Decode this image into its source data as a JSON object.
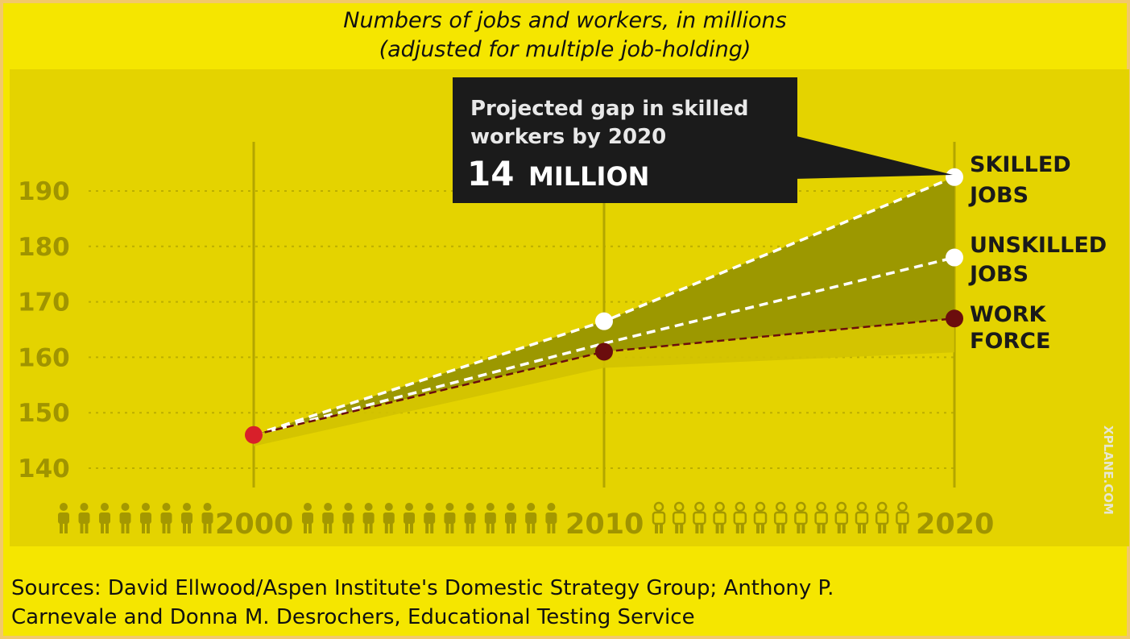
{
  "title_line1": "Numbers of jobs and workers, in millions",
  "title_line2": "(adjusted for multiple job-holding)",
  "sources_line1": "Sources: David Ellwood/Aspen Institute's Domestic Strategy Group; Anthony P.",
  "sources_line2": "Carnevale and Donna M. Desrochers, Educational Testing Service",
  "callout": {
    "line1": "Projected gap in skilled",
    "line2": "workers by 2020",
    "number": "14",
    "unit": "MILLION"
  },
  "watermark": "XPLANE.COM",
  "colors": {
    "background": "#f5e600",
    "plot": "#e4d300",
    "band": "#9c9800",
    "workforce": "#6b0d0d",
    "start_point": "#d8202a",
    "callout_bg": "#1b1b1b"
  },
  "chart_data": {
    "type": "line",
    "title": "Numbers of jobs and workers, in millions",
    "subtitle": "(adjusted for multiple job-holding)",
    "x": [
      2000,
      2010,
      2020
    ],
    "x_tick_labels": [
      "2000",
      "2010",
      "2020"
    ],
    "y_ticks": [
      140,
      150,
      160,
      170,
      180,
      190
    ],
    "ylim": [
      137,
      200
    ],
    "grid": true,
    "series": [
      {
        "name": "SKILLED JOBS",
        "label_lines": [
          "SKILLED",
          "JOBS"
        ],
        "values": [
          146,
          166.5,
          192.5
        ]
      },
      {
        "name": "UNSKILLED JOBS",
        "label_lines": [
          "UNSKILLED",
          "JOBS"
        ],
        "values": [
          146,
          162.5,
          178
        ]
      },
      {
        "name": "WORK FORCE",
        "label_lines": [
          "WORK",
          "FORCE"
        ],
        "values": [
          146,
          161,
          167
        ]
      }
    ],
    "annotation": "Projected gap in skilled workers by 2020: 14 MILLION"
  }
}
